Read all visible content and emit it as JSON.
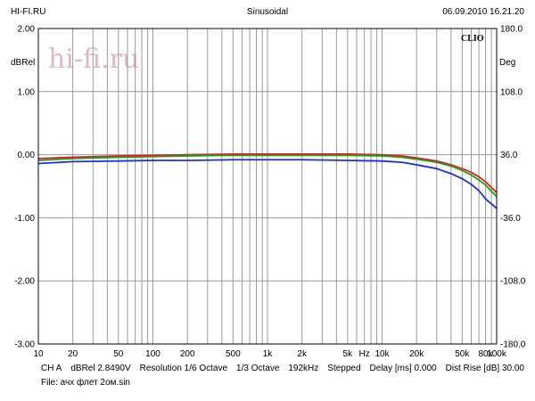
{
  "header": {
    "left": "HI-FI.RU",
    "center": "Sinusoidal",
    "right": "06.09.2010 16.21.20"
  },
  "brand": {
    "clio": "CLIO",
    "watermark": "hi-fi.ru"
  },
  "footer": {
    "ch": "CH A",
    "ref": "dBRel 2.8490V",
    "resolution": "Resolution 1/6 Octave",
    "octave": "1/3 Octave",
    "rate": "192kHz",
    "mode": "Stepped",
    "delay": "Delay [ms] 0.000",
    "dist_rise": "Dist Rise [dB] 30.00",
    "file": "File: ачх флет 2ом.sin"
  },
  "chart_data": {
    "type": "line",
    "xscale": "log",
    "xlim": [
      10,
      100000
    ],
    "ylim": [
      -3,
      2
    ],
    "y2lim": [
      -180,
      180
    ],
    "ylabel": "dBRel",
    "y2label": "Deg",
    "grid": true,
    "x_ticks": [
      {
        "v": 10,
        "label": "10"
      },
      {
        "v": 20,
        "label": "20"
      },
      {
        "v": 50,
        "label": "50"
      },
      {
        "v": 100,
        "label": "100"
      },
      {
        "v": 200,
        "label": "200"
      },
      {
        "v": 500,
        "label": "500"
      },
      {
        "v": 1000,
        "label": "1k"
      },
      {
        "v": 2000,
        "label": "2k"
      },
      {
        "v": 5000,
        "label": "5k"
      },
      {
        "v": 7000,
        "label": "Hz"
      },
      {
        "v": 10000,
        "label": "10k"
      },
      {
        "v": 20000,
        "label": "20k"
      },
      {
        "v": 50000,
        "label": "50k"
      },
      {
        "v": 80000,
        "label": "80k"
      },
      {
        "v": 100000,
        "label": "100k"
      }
    ],
    "y_ticks": [
      {
        "v": 2,
        "label": "2.00"
      },
      {
        "v": 1,
        "label": "1.00"
      },
      {
        "v": 0,
        "label": "0.00"
      },
      {
        "v": -1,
        "label": "-1.00"
      },
      {
        "v": -2,
        "label": "-2.00"
      },
      {
        "v": -3,
        "label": "-3.00"
      }
    ],
    "y2_ticks": [
      {
        "v": 180,
        "label": "180.0"
      },
      {
        "v": 108,
        "label": "108.0"
      },
      {
        "v": 36,
        "label": "36.0"
      },
      {
        "v": -36,
        "label": "-36.0"
      },
      {
        "v": -108,
        "label": "-108.0"
      },
      {
        "v": -180,
        "label": "-180.0"
      }
    ],
    "series": [
      {
        "color": "#e02020",
        "x": [
          10,
          20,
          50,
          100,
          200,
          500,
          1000,
          2000,
          5000,
          10000,
          15000,
          20000,
          30000,
          40000,
          50000,
          60000,
          70000,
          80000,
          90000,
          100000
        ],
        "y": [
          -0.06,
          -0.04,
          -0.02,
          -0.01,
          0.0,
          0.01,
          0.01,
          0.01,
          0.01,
          0.0,
          -0.02,
          -0.05,
          -0.1,
          -0.16,
          -0.22,
          -0.28,
          -0.35,
          -0.43,
          -0.52,
          -0.6
        ]
      },
      {
        "color": "#1aa01a",
        "x": [
          10,
          20,
          50,
          100,
          200,
          500,
          1000,
          2000,
          5000,
          10000,
          15000,
          20000,
          30000,
          40000,
          50000,
          60000,
          70000,
          80000,
          90000,
          100000
        ],
        "y": [
          -0.09,
          -0.06,
          -0.04,
          -0.03,
          -0.02,
          -0.01,
          -0.01,
          -0.01,
          -0.01,
          -0.02,
          -0.04,
          -0.07,
          -0.12,
          -0.18,
          -0.25,
          -0.32,
          -0.4,
          -0.48,
          -0.58,
          -0.66
        ]
      },
      {
        "color": "#1c2fe0",
        "x": [
          10,
          20,
          50,
          100,
          200,
          500,
          1000,
          2000,
          5000,
          10000,
          15000,
          20000,
          30000,
          40000,
          50000,
          60000,
          70000,
          80000,
          90000,
          100000
        ],
        "y": [
          -0.14,
          -0.11,
          -0.1,
          -0.09,
          -0.09,
          -0.08,
          -0.08,
          -0.08,
          -0.09,
          -0.1,
          -0.12,
          -0.16,
          -0.22,
          -0.3,
          -0.38,
          -0.47,
          -0.57,
          -0.7,
          -0.78,
          -0.85
        ]
      }
    ]
  }
}
